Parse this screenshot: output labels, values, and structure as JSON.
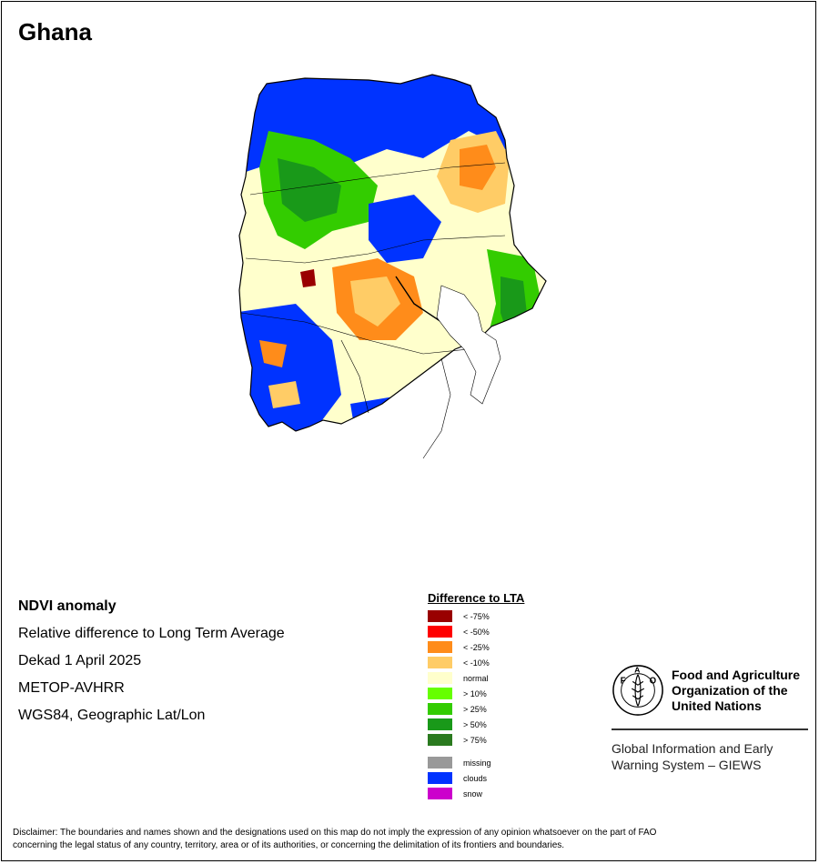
{
  "map_title": "Ghana",
  "info": {
    "product": "NDVI anomaly",
    "description": "Relative difference to Long Term Average",
    "period": "Dekad 1 April 2025",
    "sensor": "METOP-AVHRR",
    "projection": "WGS84, Geographic Lat/Lon"
  },
  "legend": {
    "title": "Difference to LTA",
    "classes": [
      {
        "label": "< -75%",
        "color": "#990000"
      },
      {
        "label": "< -50%",
        "color": "#ff0000"
      },
      {
        "label": "< -25%",
        "color": "#ff8c1a"
      },
      {
        "label": "< -10%",
        "color": "#ffcc66"
      },
      {
        "label": "normal",
        "color": "#ffffcc"
      },
      {
        "label": "> 10%",
        "color": "#66ff00"
      },
      {
        "label": "> 25%",
        "color": "#33cc00"
      },
      {
        "label": "> 50%",
        "color": "#199919"
      },
      {
        "label": "> 75%",
        "color": "#2a7a1f"
      }
    ],
    "extra_classes": [
      {
        "label": "missing",
        "color": "#999999"
      },
      {
        "label": "clouds",
        "color": "#0033ff"
      },
      {
        "label": "snow",
        "color": "#cc00cc"
      }
    ]
  },
  "fao": {
    "logo_text": "FAO FIAT PANIS",
    "name_line1": "Food and Agriculture",
    "name_line2": "Organization of the",
    "name_line3": "United Nations",
    "giews_line1": "Global Information and Early",
    "giews_line2": "Warning System – GIEWS"
  },
  "disclaimer_line1": "Disclaimer: The boundaries and names shown and the designations used on this map do not imply the expression of any opinion whatsoever on the part of FAO",
  "disclaimer_line2": "concerning the legal status of any country, territory, area or of its authorities, or concerning the delimitation of its frontiers and boundaries."
}
